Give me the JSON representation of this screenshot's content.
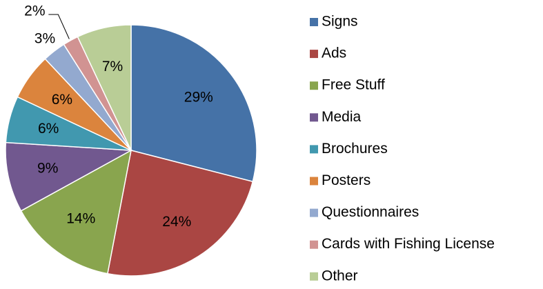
{
  "chart_data": {
    "type": "pie",
    "categories": [
      "Signs",
      "Ads",
      "Free Stuff",
      "Media",
      "Brochures",
      "Posters",
      "Questionnaires",
      "Cards with Fishing License",
      "Other"
    ],
    "values": [
      29,
      24,
      14,
      9,
      6,
      6,
      3,
      2,
      7
    ],
    "value_labels": [
      "29%",
      "24%",
      "14%",
      "9%",
      "6%",
      "6%",
      "3%",
      "2%",
      "7%"
    ],
    "colors": [
      "#4572a7",
      "#aa4643",
      "#89a54e",
      "#71588f",
      "#4198af",
      "#db843d",
      "#93a9cf",
      "#d19392",
      "#b9cd96"
    ],
    "legend": "right"
  }
}
